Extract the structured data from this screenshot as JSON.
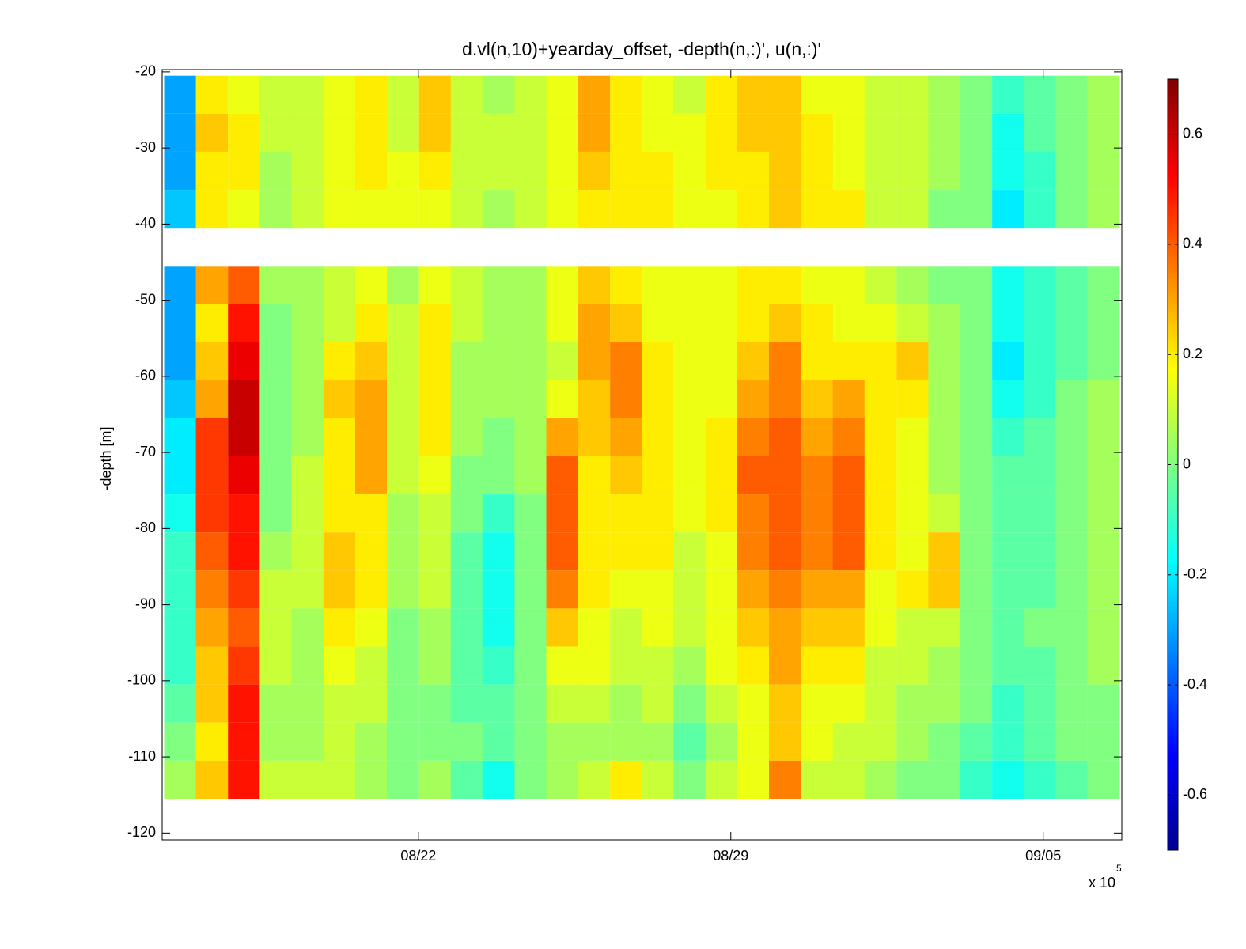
{
  "chart_data": {
    "type": "heatmap",
    "title": "d.vl(n,10)+yearday_offset, -depth(n,:)', u(n,:)'",
    "ylabel": "-depth [m]",
    "x_multiplier": {
      "base": "x 10",
      "exponent": "5"
    },
    "xlim": [
      16.26,
      37.76
    ],
    "xticks": [
      {
        "value": 22,
        "label": "08/22"
      },
      {
        "value": 29,
        "label": "08/29"
      },
      {
        "value": 36,
        "label": "09/05"
      }
    ],
    "ylim": [
      -120.9,
      -19.7
    ],
    "yticks": [
      -120,
      -110,
      -100,
      -90,
      -80,
      -70,
      -60,
      -50,
      -40,
      -30,
      -20
    ],
    "colormap": "jet",
    "clim": [
      -0.7,
      0.7
    ],
    "cticks": [
      -0.6,
      -0.4,
      -0.2,
      0,
      0.2,
      0.4,
      0.6
    ],
    "x": [
      16.66,
      17.37,
      18.09,
      18.8,
      19.51,
      20.23,
      20.94,
      21.65,
      22.37,
      23.08,
      23.79,
      24.51,
      25.22,
      25.93,
      26.65,
      27.36,
      28.07,
      28.79,
      29.5,
      30.21,
      30.93,
      31.64,
      32.35,
      33.07,
      33.78,
      34.49,
      35.21,
      35.92,
      36.63,
      37.35
    ],
    "y": [
      -23,
      -28,
      -33,
      -38,
      -48,
      -53,
      -58,
      -63,
      -68,
      -73,
      -78,
      -83,
      -88,
      -93,
      -98,
      -103,
      -108,
      -113
    ],
    "z": [
      [
        -0.3,
        0.2,
        0.15,
        0.1,
        0.1,
        0.15,
        0.2,
        0.1,
        0.25,
        0.1,
        0.05,
        0.1,
        0.15,
        0.3,
        0.2,
        0.15,
        0.1,
        0.2,
        0.25,
        0.25,
        0.15,
        0.15,
        0.1,
        0.1,
        0.05,
        0,
        -0.1,
        -0.05,
        0,
        0.05
      ],
      [
        -0.3,
        0.25,
        0.2,
        0.1,
        0.1,
        0.15,
        0.2,
        0.1,
        0.25,
        0.1,
        0.1,
        0.1,
        0.15,
        0.3,
        0.2,
        0.15,
        0.15,
        0.2,
        0.25,
        0.25,
        0.2,
        0.15,
        0.1,
        0.1,
        0.05,
        0,
        -0.15,
        -0.05,
        0,
        0.05
      ],
      [
        -0.3,
        0.2,
        0.2,
        0.05,
        0.1,
        0.15,
        0.2,
        0.15,
        0.2,
        0.1,
        0.1,
        0.1,
        0.15,
        0.25,
        0.2,
        0.2,
        0.15,
        0.2,
        0.2,
        0.25,
        0.2,
        0.15,
        0.1,
        0.1,
        0.05,
        0,
        -0.15,
        -0.1,
        0,
        0.05
      ],
      [
        -0.25,
        0.2,
        0.15,
        0.05,
        0.1,
        0.15,
        0.15,
        0.15,
        0.15,
        0.1,
        0.05,
        0.1,
        0.15,
        0.2,
        0.2,
        0.2,
        0.15,
        0.15,
        0.2,
        0.25,
        0.2,
        0.2,
        0.1,
        0.1,
        0,
        0,
        -0.2,
        -0.1,
        0,
        0.05
      ],
      [
        -0.3,
        0.3,
        0.4,
        0.05,
        0.05,
        0.1,
        0.15,
        0.05,
        0.15,
        0.1,
        0.05,
        0.05,
        0.15,
        0.25,
        0.2,
        0.15,
        0.15,
        0.15,
        0.2,
        0.2,
        0.15,
        0.15,
        0.1,
        0.05,
        0,
        0,
        -0.15,
        -0.1,
        -0.05,
        0
      ],
      [
        -0.3,
        0.2,
        0.5,
        0,
        0.05,
        0.1,
        0.2,
        0.1,
        0.2,
        0.1,
        0.05,
        0.05,
        0.15,
        0.3,
        0.25,
        0.15,
        0.15,
        0.15,
        0.2,
        0.25,
        0.2,
        0.15,
        0.15,
        0.1,
        0.05,
        0,
        -0.15,
        -0.1,
        -0.05,
        0
      ],
      [
        -0.3,
        0.25,
        0.55,
        0,
        0.05,
        0.2,
        0.25,
        0.1,
        0.2,
        0.05,
        0.05,
        0.05,
        0.1,
        0.3,
        0.35,
        0.2,
        0.15,
        0.15,
        0.25,
        0.35,
        0.2,
        0.2,
        0.2,
        0.25,
        0.05,
        0,
        -0.2,
        -0.1,
        -0.05,
        0
      ],
      [
        -0.25,
        0.3,
        0.6,
        0,
        0.05,
        0.25,
        0.3,
        0.1,
        0.2,
        0.05,
        0.05,
        0.05,
        0.15,
        0.25,
        0.35,
        0.2,
        0.15,
        0.15,
        0.3,
        0.35,
        0.25,
        0.3,
        0.2,
        0.2,
        0.05,
        0,
        -0.15,
        -0.1,
        0,
        0.05
      ],
      [
        -0.2,
        0.45,
        0.6,
        0,
        0.05,
        0.2,
        0.3,
        0.1,
        0.2,
        0.05,
        0,
        0.05,
        0.3,
        0.25,
        0.3,
        0.2,
        0.15,
        0.2,
        0.35,
        0.4,
        0.3,
        0.35,
        0.2,
        0.15,
        0.05,
        0,
        -0.1,
        -0.05,
        0,
        0.05
      ],
      [
        -0.2,
        0.45,
        0.55,
        0,
        0.1,
        0.2,
        0.3,
        0.1,
        0.15,
        0,
        0,
        0.05,
        0.4,
        0.2,
        0.25,
        0.2,
        0.15,
        0.2,
        0.4,
        0.4,
        0.35,
        0.4,
        0.2,
        0.15,
        0.05,
        0,
        -0.05,
        -0.05,
        0,
        0.05
      ],
      [
        -0.15,
        0.45,
        0.5,
        0,
        0.1,
        0.2,
        0.2,
        0.05,
        0.1,
        0,
        -0.1,
        0,
        0.4,
        0.2,
        0.2,
        0.2,
        0.15,
        0.2,
        0.35,
        0.4,
        0.35,
        0.4,
        0.2,
        0.15,
        0.1,
        0,
        -0.05,
        -0.05,
        0,
        0.05
      ],
      [
        -0.1,
        0.4,
        0.5,
        0.05,
        0.1,
        0.25,
        0.2,
        0.05,
        0.1,
        -0.05,
        -0.15,
        0,
        0.4,
        0.2,
        0.2,
        0.2,
        0.1,
        0.15,
        0.35,
        0.4,
        0.35,
        0.4,
        0.2,
        0.15,
        0.25,
        0,
        -0.05,
        -0.05,
        0,
        0.05
      ],
      [
        -0.1,
        0.35,
        0.45,
        0.1,
        0.1,
        0.25,
        0.2,
        0.05,
        0.1,
        -0.05,
        -0.15,
        0,
        0.35,
        0.2,
        0.15,
        0.15,
        0.1,
        0.15,
        0.3,
        0.35,
        0.3,
        0.3,
        0.15,
        0.2,
        0.25,
        0,
        -0.05,
        -0.05,
        0,
        0.05
      ],
      [
        -0.1,
        0.3,
        0.4,
        0.1,
        0.05,
        0.2,
        0.15,
        0,
        0.05,
        -0.05,
        -0.15,
        0,
        0.25,
        0.15,
        0.1,
        0.15,
        0.1,
        0.15,
        0.25,
        0.3,
        0.25,
        0.25,
        0.15,
        0.1,
        0.1,
        0,
        -0.05,
        0,
        0,
        0.05
      ],
      [
        -0.1,
        0.25,
        0.45,
        0.1,
        0.05,
        0.15,
        0.1,
        0,
        0.05,
        -0.05,
        -0.1,
        0,
        0.15,
        0.15,
        0.1,
        0.1,
        0.05,
        0.15,
        0.2,
        0.3,
        0.2,
        0.2,
        0.1,
        0.1,
        0.05,
        0,
        -0.05,
        -0.05,
        0,
        0.05
      ],
      [
        -0.05,
        0.25,
        0.5,
        0.05,
        0.05,
        0.1,
        0.1,
        0,
        0,
        -0.05,
        -0.05,
        0,
        0.1,
        0.1,
        0.05,
        0.1,
        0,
        0.1,
        0.15,
        0.25,
        0.15,
        0.15,
        0.1,
        0.05,
        0.05,
        0,
        -0.1,
        -0.05,
        0,
        0
      ],
      [
        0,
        0.2,
        0.5,
        0.05,
        0.05,
        0.1,
        0.05,
        0,
        0,
        0,
        -0.05,
        0,
        0.05,
        0.05,
        0.05,
        0.05,
        -0.05,
        0.05,
        0.15,
        0.25,
        0.15,
        0.1,
        0.1,
        0.05,
        0,
        -0.05,
        -0.1,
        -0.05,
        0,
        0
      ],
      [
        0.05,
        0.25,
        0.5,
        0.1,
        0.1,
        0.1,
        0.05,
        0,
        0.05,
        -0.05,
        -0.15,
        0,
        0.05,
        0.1,
        0.2,
        0.1,
        0,
        0.1,
        0.15,
        0.35,
        0.1,
        0.1,
        0.05,
        0,
        0,
        -0.1,
        -0.15,
        -0.1,
        -0.05,
        0
      ]
    ]
  }
}
